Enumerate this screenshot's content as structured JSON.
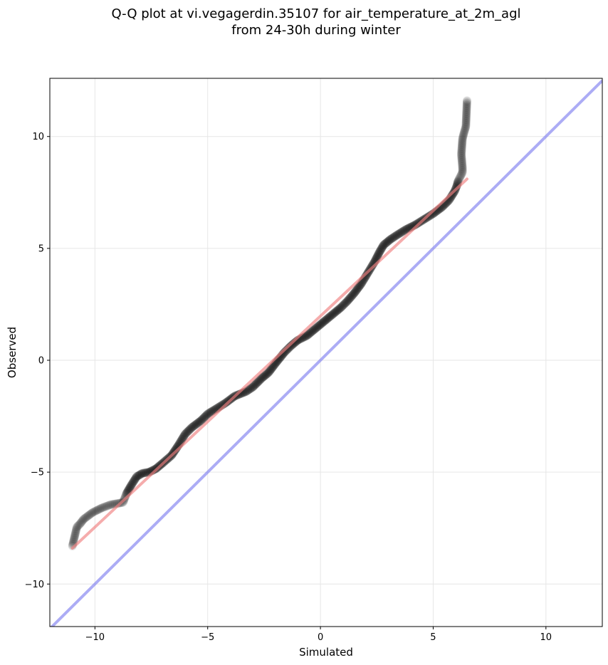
{
  "chart_data": {
    "type": "scatter",
    "title_line1": "Q-Q plot at vi.vegagerdin.35107 for air_temperature_at_2m_agl",
    "title_line2": "from 24-30h during winter",
    "xlabel": "Simulated",
    "ylabel": "Observed",
    "xlim": [
      -12.0,
      12.5
    ],
    "ylim": [
      -11.9,
      12.6
    ],
    "xticks": [
      -10,
      -5,
      0,
      5,
      10
    ],
    "yticks": [
      -10,
      -5,
      0,
      5,
      10
    ],
    "xtick_labels": [
      "−10",
      "−5",
      "0",
      "5",
      "10"
    ],
    "ytick_labels": [
      "−10",
      "−5",
      "0",
      "5",
      "10"
    ],
    "grid": true,
    "colors": {
      "points": "#000000",
      "fit_line": "#f08080",
      "identity_line": "#8080f0",
      "grid": "#e6e6e6"
    },
    "fit_line": {
      "x": [
        -11.0,
        6.5
      ],
      "y": [
        -8.4,
        8.1
      ]
    },
    "identity_line": {
      "x": [
        -12.0,
        12.5
      ],
      "y": [
        -12.0,
        12.5
      ]
    },
    "quantile_curve": [
      [
        -11.0,
        -8.3
      ],
      [
        -10.8,
        -7.45
      ],
      [
        -10.65,
        -7.3
      ],
      [
        -10.5,
        -7.1
      ],
      [
        -10.1,
        -6.8
      ],
      [
        -9.7,
        -6.6
      ],
      [
        -9.3,
        -6.45
      ],
      [
        -9.0,
        -6.4
      ],
      [
        -8.75,
        -6.35
      ],
      [
        -8.6,
        -5.95
      ],
      [
        -8.4,
        -5.6
      ],
      [
        -8.15,
        -5.2
      ],
      [
        -7.9,
        -5.05
      ],
      [
        -7.6,
        -5.0
      ],
      [
        -7.3,
        -4.85
      ],
      [
        -7.0,
        -4.6
      ],
      [
        -6.6,
        -4.25
      ],
      [
        -6.3,
        -3.8
      ],
      [
        -6.0,
        -3.3
      ],
      [
        -5.7,
        -3.0
      ],
      [
        -5.3,
        -2.7
      ],
      [
        -5.0,
        -2.4
      ],
      [
        -4.6,
        -2.15
      ],
      [
        -4.2,
        -1.9
      ],
      [
        -3.8,
        -1.6
      ],
      [
        -3.3,
        -1.4
      ],
      [
        -3.0,
        -1.2
      ],
      [
        -2.6,
        -0.8
      ],
      [
        -2.3,
        -0.55
      ],
      [
        -2.0,
        -0.15
      ],
      [
        -1.6,
        0.35
      ],
      [
        -1.3,
        0.65
      ],
      [
        -1.0,
        0.9
      ],
      [
        -0.6,
        1.1
      ],
      [
        -0.3,
        1.35
      ],
      [
        0.0,
        1.6
      ],
      [
        0.3,
        1.85
      ],
      [
        0.6,
        2.1
      ],
      [
        0.9,
        2.35
      ],
      [
        1.2,
        2.65
      ],
      [
        1.5,
        3.0
      ],
      [
        1.8,
        3.4
      ],
      [
        2.1,
        3.9
      ],
      [
        2.4,
        4.4
      ],
      [
        2.6,
        4.8
      ],
      [
        2.8,
        5.15
      ],
      [
        3.1,
        5.4
      ],
      [
        3.4,
        5.6
      ],
      [
        3.8,
        5.85
      ],
      [
        4.2,
        6.05
      ],
      [
        4.6,
        6.3
      ],
      [
        5.0,
        6.55
      ],
      [
        5.4,
        6.85
      ],
      [
        5.7,
        7.15
      ],
      [
        5.95,
        7.55
      ],
      [
        6.05,
        7.8
      ],
      [
        6.1,
        8.0
      ],
      [
        6.2,
        8.2
      ],
      [
        6.3,
        8.4
      ],
      [
        6.3,
        8.6
      ],
      [
        6.25,
        9.2
      ],
      [
        6.3,
        9.9
      ],
      [
        6.35,
        10.1
      ],
      [
        6.45,
        10.45
      ],
      [
        6.5,
        11.6
      ]
    ]
  }
}
